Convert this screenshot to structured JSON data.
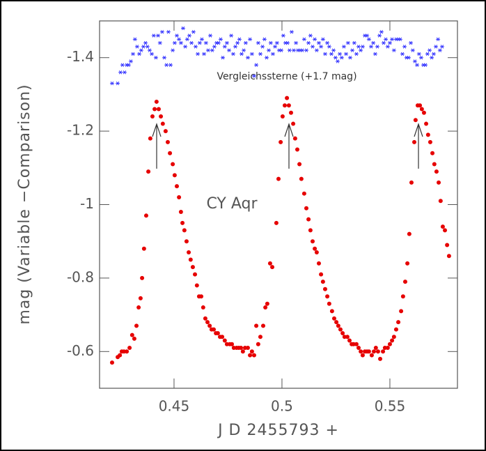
{
  "chart_data": {
    "type": "scatter",
    "xlabel": "J D   2455793 +",
    "ylabel": "mag (Variable −Comparison)",
    "xlim": [
      0.4155,
      0.5813
    ],
    "ylim": [
      -0.5,
      -1.5
    ],
    "xticks": [
      0.45,
      0.5,
      0.55
    ],
    "yticks": [
      -1.4,
      -1.2,
      -1,
      -0.8,
      -0.6
    ],
    "series": [
      {
        "name": "CY Aqr",
        "color": "#e60000",
        "marker": "circle",
        "x": [
          0.4213,
          0.4239,
          0.4249,
          0.4258,
          0.4268,
          0.4281,
          0.4294,
          0.4306,
          0.4316,
          0.4326,
          0.4336,
          0.4345,
          0.4352,
          0.4361,
          0.4371,
          0.4381,
          0.439,
          0.44,
          0.441,
          0.4419,
          0.4429,
          0.4439,
          0.4448,
          0.4461,
          0.4471,
          0.4481,
          0.4494,
          0.4503,
          0.4513,
          0.4523,
          0.4532,
          0.4539,
          0.4548,
          0.4558,
          0.4568,
          0.4577,
          0.4587,
          0.4597,
          0.4606,
          0.4616,
          0.4626,
          0.4635,
          0.4645,
          0.4655,
          0.4665,
          0.4674,
          0.4684,
          0.4694,
          0.4703,
          0.4713,
          0.4723,
          0.4735,
          0.4745,
          0.4758,
          0.4768,
          0.4777,
          0.479,
          0.48,
          0.481,
          0.4819,
          0.4829,
          0.4842,
          0.4852,
          0.4861,
          0.4871,
          0.4881,
          0.489,
          0.49,
          0.4913,
          0.4923,
          0.4932,
          0.4945,
          0.4955,
          0.4974,
          0.4984,
          0.4994,
          0.5003,
          0.5013,
          0.5023,
          0.5032,
          0.5042,
          0.5052,
          0.5061,
          0.5071,
          0.5081,
          0.509,
          0.5103,
          0.5113,
          0.5123,
          0.5132,
          0.5142,
          0.5152,
          0.5161,
          0.5171,
          0.5181,
          0.519,
          0.52,
          0.521,
          0.5219,
          0.5232,
          0.5242,
          0.5252,
          0.5261,
          0.5271,
          0.5281,
          0.529,
          0.5303,
          0.5313,
          0.5323,
          0.5332,
          0.5345,
          0.5355,
          0.5365,
          0.5374,
          0.5384,
          0.5394,
          0.5403,
          0.5416,
          0.5426,
          0.5435,
          0.5445,
          0.5455,
          0.5468,
          0.5477,
          0.549,
          0.55,
          0.551,
          0.5519,
          0.5529,
          0.5539,
          0.5552,
          0.5561,
          0.5571,
          0.5581,
          0.559,
          0.56,
          0.5613,
          0.5619,
          0.5629,
          0.5639,
          0.5648,
          0.5658,
          0.5668,
          0.5677,
          0.5687,
          0.5697,
          0.5706,
          0.5716,
          0.5726,
          0.5735,
          0.5745,
          0.5755,
          0.5765,
          0.5774
        ],
        "values": [
          -0.57,
          -0.585,
          -0.59,
          -0.6,
          -0.6,
          -0.6,
          -0.61,
          -0.645,
          -0.635,
          -0.67,
          -0.72,
          -0.745,
          -0.8,
          -0.88,
          -0.97,
          -1.09,
          -1.18,
          -1.24,
          -1.26,
          -1.28,
          -1.26,
          -1.24,
          -1.22,
          -1.2,
          -1.17,
          -1.14,
          -1.11,
          -1.08,
          -1.05,
          -1.02,
          -0.98,
          -0.95,
          -0.93,
          -0.9,
          -0.87,
          -0.85,
          -0.83,
          -0.81,
          -0.78,
          -0.75,
          -0.75,
          -0.72,
          -0.69,
          -0.68,
          -0.67,
          -0.66,
          -0.66,
          -0.65,
          -0.65,
          -0.64,
          -0.64,
          -0.63,
          -0.62,
          -0.62,
          -0.62,
          -0.61,
          -0.61,
          -0.61,
          -0.61,
          -0.6,
          -0.61,
          -0.61,
          -0.59,
          -0.6,
          -0.59,
          -0.67,
          -0.62,
          -0.64,
          -0.67,
          -0.72,
          -0.73,
          -0.84,
          -0.83,
          -0.95,
          -1.07,
          -1.17,
          -1.24,
          -1.27,
          -1.29,
          -1.27,
          -1.25,
          -1.22,
          -1.18,
          -1.15,
          -1.11,
          -1.07,
          -1.03,
          -0.99,
          -0.96,
          -0.93,
          -0.9,
          -0.88,
          -0.87,
          -0.84,
          -0.81,
          -0.79,
          -0.77,
          -0.75,
          -0.73,
          -0.71,
          -0.69,
          -0.68,
          -0.67,
          -0.66,
          -0.65,
          -0.64,
          -0.64,
          -0.63,
          -0.62,
          -0.62,
          -0.62,
          -0.61,
          -0.6,
          -0.59,
          -0.6,
          -0.6,
          -0.6,
          -0.59,
          -0.6,
          -0.61,
          -0.6,
          -0.58,
          -0.6,
          -0.61,
          -0.61,
          -0.62,
          -0.63,
          -0.64,
          -0.66,
          -0.68,
          -0.71,
          -0.75,
          -0.79,
          -0.84,
          -0.92,
          -1.06,
          -1.17,
          -1.23,
          -1.27,
          -1.27,
          -1.26,
          -1.25,
          -1.22,
          -1.19,
          -1.17,
          -1.14,
          -1.11,
          -1.09,
          -1.06,
          -1.01,
          -0.94,
          -0.93,
          -0.89,
          -0.86
        ]
      },
      {
        "name": "Vergleichssterne (+1.7 mag)",
        "color": "#3333ff",
        "marker": "asterisk",
        "x": [
          0.4213,
          0.4239,
          0.4252,
          0.4261,
          0.4271,
          0.4281,
          0.429,
          0.43,
          0.431,
          0.4319,
          0.4329,
          0.4339,
          0.4348,
          0.4358,
          0.4368,
          0.4377,
          0.4387,
          0.4397,
          0.4406,
          0.4416,
          0.4426,
          0.4435,
          0.4445,
          0.4455,
          0.4465,
          0.4474,
          0.4484,
          0.4494,
          0.4503,
          0.4513,
          0.4523,
          0.4532,
          0.4542,
          0.4552,
          0.4561,
          0.4571,
          0.4581,
          0.459,
          0.46,
          0.461,
          0.4619,
          0.4629,
          0.4639,
          0.4648,
          0.4658,
          0.4668,
          0.4677,
          0.4687,
          0.4697,
          0.4706,
          0.4716,
          0.4726,
          0.4735,
          0.4745,
          0.4755,
          0.4765,
          0.4774,
          0.4784,
          0.4794,
          0.4803,
          0.4813,
          0.4823,
          0.4832,
          0.4842,
          0.4852,
          0.4861,
          0.4871,
          0.4881,
          0.489,
          0.49,
          0.491,
          0.4919,
          0.4929,
          0.4939,
          0.4948,
          0.4958,
          0.4968,
          0.4977,
          0.4987,
          0.4997,
          0.5006,
          0.5016,
          0.5026,
          0.5035,
          0.5045,
          0.5055,
          0.5065,
          0.5074,
          0.5084,
          0.5094,
          0.5103,
          0.5113,
          0.5123,
          0.5132,
          0.5142,
          0.5152,
          0.5161,
          0.5171,
          0.5181,
          0.519,
          0.52,
          0.521,
          0.5219,
          0.5229,
          0.5239,
          0.5248,
          0.5258,
          0.5268,
          0.5277,
          0.5287,
          0.5297,
          0.5306,
          0.5316,
          0.5326,
          0.5335,
          0.5345,
          0.5355,
          0.5365,
          0.5374,
          0.5384,
          0.5394,
          0.5403,
          0.5413,
          0.5423,
          0.5432,
          0.5442,
          0.5452,
          0.5461,
          0.5471,
          0.5481,
          0.549,
          0.55,
          0.551,
          0.5519,
          0.5529,
          0.5539,
          0.5548,
          0.5558,
          0.5568,
          0.5577,
          0.5587,
          0.5597,
          0.5606,
          0.5616,
          0.5626,
          0.5635,
          0.5645,
          0.5655,
          0.5665,
          0.5674,
          0.5684,
          0.5694,
          0.5703,
          0.5713,
          0.5723,
          0.5732,
          0.5742
        ],
        "values": [
          -1.33,
          -1.33,
          -1.36,
          -1.38,
          -1.36,
          -1.38,
          -1.38,
          -1.39,
          -1.41,
          -1.45,
          -1.43,
          -1.41,
          -1.42,
          -1.43,
          -1.44,
          -1.43,
          -1.42,
          -1.41,
          -1.46,
          -1.4,
          -1.46,
          -1.44,
          -1.47,
          -1.4,
          -1.38,
          -1.47,
          -1.38,
          -1.42,
          -1.44,
          -1.46,
          -1.45,
          -1.44,
          -1.48,
          -1.43,
          -1.45,
          -1.46,
          -1.44,
          -1.47,
          -1.43,
          -1.41,
          -1.44,
          -1.45,
          -1.41,
          -1.44,
          -1.42,
          -1.46,
          -1.42,
          -1.43,
          -1.44,
          -1.44,
          -1.45,
          -1.4,
          -1.43,
          -1.44,
          -1.42,
          -1.46,
          -1.41,
          -1.43,
          -1.44,
          -1.45,
          -1.41,
          -1.42,
          -1.44,
          -1.4,
          -1.45,
          -1.41,
          -1.35,
          -1.38,
          -1.44,
          -1.41,
          -1.43,
          -1.45,
          -1.4,
          -1.42,
          -1.44,
          -1.41,
          -1.43,
          -1.44,
          -1.42,
          -1.42,
          -1.46,
          -1.44,
          -1.44,
          -1.42,
          -1.47,
          -1.42,
          -1.44,
          -1.42,
          -1.42,
          -1.42,
          -1.45,
          -1.42,
          -1.44,
          -1.46,
          -1.43,
          -1.45,
          -1.42,
          -1.44,
          -1.43,
          -1.45,
          -1.41,
          -1.44,
          -1.43,
          -1.41,
          -1.42,
          -1.4,
          -1.39,
          -1.41,
          -1.4,
          -1.43,
          -1.41,
          -1.44,
          -1.4,
          -1.42,
          -1.44,
          -1.41,
          -1.43,
          -1.42,
          -1.43,
          -1.46,
          -1.46,
          -1.45,
          -1.43,
          -1.44,
          -1.41,
          -1.43,
          -1.46,
          -1.47,
          -1.44,
          -1.45,
          -1.43,
          -1.44,
          -1.45,
          -1.42,
          -1.45,
          -1.45,
          -1.45,
          -1.41,
          -1.43,
          -1.4,
          -1.4,
          -1.44,
          -1.42,
          -1.39,
          -1.38,
          -1.41,
          -1.4,
          -1.38,
          -1.38,
          -1.41,
          -1.42,
          -1.4,
          -1.41,
          -1.43,
          -1.45,
          -1.42,
          -1.43
        ]
      }
    ]
  }
}
